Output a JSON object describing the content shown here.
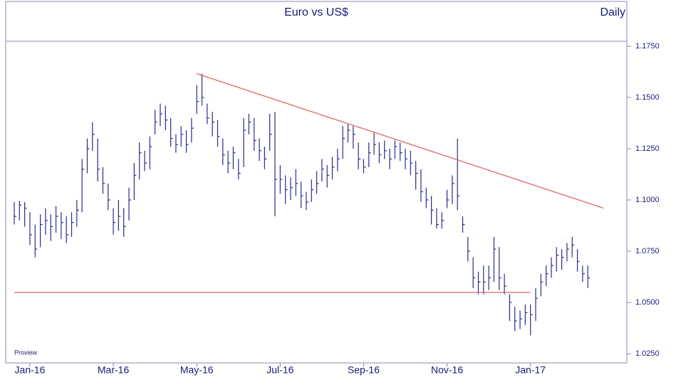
{
  "chart_data": {
    "type": "ohlc",
    "title": "Euro vs US$",
    "subtitle": "Daily",
    "watermark": "Proview",
    "color": "#2b2b8c",
    "categories": [
      null,
      null,
      null,
      "Jan-16",
      null,
      null,
      null,
      null,
      null,
      null,
      null,
      null,
      null,
      null,
      null,
      null,
      null,
      null,
      null,
      "Mar-16",
      null,
      null,
      null,
      null,
      null,
      null,
      null,
      null,
      null,
      null,
      null,
      null,
      null,
      null,
      null,
      "May-16",
      null,
      null,
      null,
      null,
      null,
      null,
      null,
      null,
      null,
      null,
      null,
      null,
      null,
      null,
      null,
      "Jul-16",
      null,
      null,
      null,
      null,
      null,
      null,
      null,
      null,
      null,
      null,
      null,
      null,
      null,
      null,
      null,
      "Sep-16",
      null,
      null,
      null,
      null,
      null,
      null,
      null,
      null,
      null,
      null,
      null,
      null,
      null,
      null,
      null,
      "Nov-16",
      null,
      null,
      null,
      null,
      null,
      null,
      null,
      null,
      null,
      null,
      null,
      null,
      null,
      null,
      null,
      "Jan-17",
      null,
      null,
      null,
      null,
      null,
      null,
      null,
      null,
      null,
      null,
      null
    ],
    "high": [
      1.099,
      1.0995,
      1.099,
      1.094,
      1.088,
      1.093,
      1.096,
      1.093,
      1.097,
      1.094,
      1.092,
      1.094,
      1.1,
      1.12,
      1.13,
      1.138,
      1.13,
      1.116,
      1.108,
      1.096,
      1.1,
      1.096,
      1.106,
      1.118,
      1.128,
      1.124,
      1.131,
      1.144,
      1.147,
      1.146,
      1.14,
      1.132,
      1.136,
      1.134,
      1.14,
      1.156,
      1.1616,
      1.147,
      1.143,
      1.139,
      1.13,
      1.124,
      1.126,
      1.12,
      1.14,
      1.142,
      1.14,
      1.13,
      1.126,
      1.142,
      1.143,
      1.117,
      1.112,
      1.111,
      1.115,
      1.109,
      1.104,
      1.11,
      1.114,
      1.12,
      1.117,
      1.121,
      1.125,
      1.136,
      1.137,
      1.136,
      1.128,
      1.12,
      1.128,
      1.133,
      1.128,
      1.129,
      1.125,
      1.129,
      1.128,
      1.125,
      1.124,
      1.119,
      1.115,
      1.106,
      1.102,
      1.096,
      1.094,
      1.105,
      1.112,
      1.13,
      1.092,
      1.082,
      1.072,
      1.065,
      1.068,
      1.068,
      1.082,
      1.077,
      1.064,
      1.054,
      1.048,
      1.046,
      1.049,
      1.049,
      1.057,
      1.064,
      1.068,
      1.072,
      1.077,
      1.076,
      1.079,
      1.082,
      1.076,
      1.068,
      1.068
    ],
    "low": [
      1.088,
      1.09,
      1.087,
      1.078,
      1.072,
      1.077,
      1.083,
      1.08,
      1.084,
      1.081,
      1.079,
      1.082,
      1.087,
      1.094,
      1.113,
      1.124,
      1.109,
      1.103,
      1.095,
      1.083,
      1.085,
      1.082,
      1.09,
      1.1,
      1.11,
      1.114,
      1.115,
      1.132,
      1.136,
      1.134,
      1.126,
      1.123,
      1.126,
      1.123,
      1.128,
      1.142,
      1.146,
      1.137,
      1.131,
      1.126,
      1.117,
      1.113,
      1.115,
      1.11,
      1.116,
      1.132,
      1.124,
      1.119,
      1.115,
      1.124,
      1.092,
      1.103,
      1.098,
      1.1,
      1.102,
      1.096,
      1.095,
      1.099,
      1.103,
      1.109,
      1.106,
      1.11,
      1.114,
      1.12,
      1.128,
      1.125,
      1.115,
      1.113,
      1.116,
      1.122,
      1.118,
      1.12,
      1.115,
      1.12,
      1.119,
      1.115,
      1.112,
      1.105,
      1.099,
      1.096,
      1.088,
      1.086,
      1.086,
      1.096,
      1.098,
      1.095,
      1.084,
      1.07,
      1.057,
      1.054,
      1.054,
      1.056,
      1.06,
      1.056,
      1.054,
      1.041,
      1.036,
      1.037,
      1.039,
      1.034,
      1.041,
      1.053,
      1.058,
      1.062,
      1.065,
      1.066,
      1.07,
      1.072,
      1.065,
      1.06,
      1.057
    ],
    "close": [
      1.092,
      1.0975,
      1.096,
      1.083,
      1.076,
      1.088,
      1.09,
      1.087,
      1.092,
      1.089,
      1.083,
      1.089,
      1.095,
      1.115,
      1.125,
      1.132,
      1.115,
      1.108,
      1.1,
      1.089,
      1.092,
      1.087,
      1.1,
      1.112,
      1.123,
      1.118,
      1.126,
      1.138,
      1.142,
      1.139,
      1.13,
      1.127,
      1.132,
      1.127,
      1.135,
      1.148,
      1.15,
      1.14,
      1.138,
      1.131,
      1.122,
      1.118,
      1.123,
      1.113,
      1.134,
      1.138,
      1.129,
      1.124,
      1.12,
      1.132,
      1.11,
      1.11,
      1.105,
      1.106,
      1.108,
      1.102,
      1.099,
      1.105,
      1.108,
      1.115,
      1.112,
      1.116,
      1.12,
      1.13,
      1.134,
      1.132,
      1.12,
      1.116,
      1.123,
      1.127,
      1.122,
      1.124,
      1.12,
      1.126,
      1.123,
      1.12,
      1.118,
      1.113,
      1.104,
      1.1,
      1.095,
      1.088,
      1.09,
      1.1,
      1.108,
      1.102,
      1.088,
      1.075,
      1.062,
      1.06,
      1.06,
      1.062,
      1.076,
      1.062,
      1.058,
      1.05,
      1.041,
      1.042,
      1.045,
      1.044,
      1.052,
      1.06,
      1.064,
      1.068,
      1.073,
      1.072,
      1.076,
      1.078,
      1.07,
      1.064,
      1.062
    ],
    "ylim": [
      1.0205,
      1.1774
    ],
    "yticks": [
      {
        "value": 1.025,
        "label": "1.0250"
      },
      {
        "value": 1.05,
        "label": "1.0500"
      },
      {
        "value": 1.075,
        "label": "1.0750"
      },
      {
        "value": 1.1,
        "label": "1.1000"
      },
      {
        "value": 1.125,
        "label": "1.1250"
      },
      {
        "value": 1.15,
        "label": "1.1500"
      },
      {
        "value": 1.175,
        "label": "1.1750"
      }
    ],
    "trendlines": [
      {
        "color": "#e06666",
        "x": [
          35,
          113
        ],
        "y": [
          1.1616,
          1.096
        ]
      },
      {
        "color": "#e06666",
        "x": [
          0,
          99
        ],
        "y": [
          1.0549,
          1.0549
        ]
      }
    ]
  }
}
